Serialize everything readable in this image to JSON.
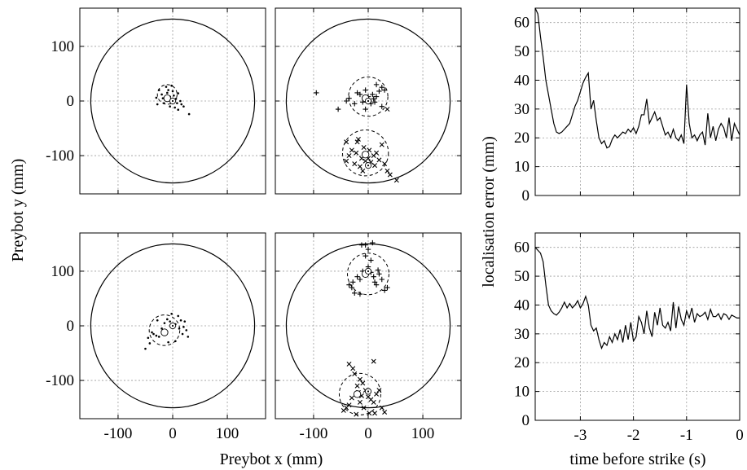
{
  "figure": {
    "shared_xlabel": "Preybot x (mm)",
    "shared_ylabel": "Preybot y (mm)",
    "right_ylabel": "localisation error (mm)",
    "right_xlabel": "time before strike (s)"
  },
  "chart_data": [
    {
      "id": "scatter-top-left",
      "type": "scatter",
      "xlim": [
        -170,
        170
      ],
      "ylim": [
        -170,
        170
      ],
      "xticks": [
        -100,
        0,
        100
      ],
      "yticks": [
        -100,
        0,
        100
      ],
      "xticklabels": [
        "",
        "",
        ""
      ],
      "yticklabels": [
        "-100",
        "0",
        "100"
      ],
      "grid": true,
      "arena_radius": 150,
      "clusters": [
        {
          "marker": "dot",
          "center": [
            -10,
            12
          ],
          "radius": 18,
          "estimate": [
            -10,
            5
          ],
          "true": [
            0,
            0
          ],
          "points": [
            [
              -25,
              20
            ],
            [
              -20,
              12
            ],
            [
              -18,
              5
            ],
            [
              -14,
              2
            ],
            [
              -10,
              15
            ],
            [
              -5,
              8
            ],
            [
              -8,
              20
            ],
            [
              0,
              18
            ],
            [
              2,
              10
            ],
            [
              6,
              4
            ],
            [
              10,
              14
            ],
            [
              14,
              0
            ],
            [
              16,
              -6
            ],
            [
              20,
              -10
            ],
            [
              -28,
              -6
            ],
            [
              -16,
              -4
            ],
            [
              -5,
              -10
            ],
            [
              4,
              -12
            ],
            [
              10,
              -16
            ],
            [
              30,
              -24
            ],
            [
              -30,
              6
            ],
            [
              -2,
              28
            ],
            [
              8,
              -4
            ],
            [
              -12,
              26
            ]
          ]
        }
      ]
    },
    {
      "id": "scatter-top-right",
      "type": "scatter",
      "xlim": [
        -170,
        170
      ],
      "ylim": [
        -170,
        170
      ],
      "xticks": [
        -100,
        0,
        100
      ],
      "yticks": [
        -100,
        0,
        100
      ],
      "xticklabels": [
        "",
        "",
        ""
      ],
      "yticklabels": [
        "",
        "",
        ""
      ],
      "grid": true,
      "arena_radius": 150,
      "clusters": [
        {
          "marker": "plus",
          "center": [
            0,
            8
          ],
          "radius": 36,
          "estimate": [
            -5,
            5
          ],
          "true": [
            0,
            0
          ],
          "points": [
            [
              -95,
              15
            ],
            [
              -55,
              -15
            ],
            [
              -40,
              0
            ],
            [
              -35,
              5
            ],
            [
              -20,
              15
            ],
            [
              -15,
              12
            ],
            [
              -10,
              -2
            ],
            [
              -5,
              20
            ],
            [
              0,
              8
            ],
            [
              2,
              0
            ],
            [
              5,
              -5
            ],
            [
              8,
              12
            ],
            [
              10,
              4
            ],
            [
              12,
              -2
            ],
            [
              15,
              8
            ],
            [
              20,
              18
            ],
            [
              25,
              25
            ],
            [
              30,
              20
            ],
            [
              25,
              -10
            ],
            [
              -25,
              -5
            ],
            [
              15,
              30
            ],
            [
              -5,
              -15
            ]
          ]
        },
        {
          "marker": "cross",
          "center": [
            -5,
            -95
          ],
          "radius": 42,
          "estimate": [
            -5,
            -98
          ],
          "true": [
            0,
            -118
          ],
          "points": [
            [
              -40,
              -110
            ],
            [
              -35,
              -100
            ],
            [
              -30,
              -90
            ],
            [
              -25,
              -115
            ],
            [
              -20,
              -75
            ],
            [
              -18,
              -70
            ],
            [
              -15,
              -120
            ],
            [
              -12,
              -105
            ],
            [
              -8,
              -85
            ],
            [
              -5,
              -110
            ],
            [
              0,
              -105
            ],
            [
              5,
              -112
            ],
            [
              10,
              -100
            ],
            [
              15,
              -95
            ],
            [
              20,
              -108
            ],
            [
              25,
              -80
            ],
            [
              30,
              -115
            ],
            [
              35,
              -128
            ],
            [
              40,
              -135
            ],
            [
              -40,
              -75
            ],
            [
              52,
              -145
            ],
            [
              -10,
              -128
            ],
            [
              2,
              -90
            ],
            [
              -22,
              -95
            ],
            [
              12,
              -118
            ],
            [
              35,
              -15
            ]
          ]
        }
      ]
    },
    {
      "id": "scatter-bottom-left",
      "type": "scatter",
      "xlim": [
        -170,
        170
      ],
      "ylim": [
        -170,
        170
      ],
      "xticks": [
        -100,
        0,
        100
      ],
      "yticks": [
        -100,
        0,
        100
      ],
      "xticklabels": [
        "-100",
        "0",
        "100"
      ],
      "yticklabels": [
        "-100",
        "0",
        "100"
      ],
      "grid": true,
      "arena_radius": 150,
      "clusters": [
        {
          "marker": "dot",
          "center": [
            -15,
            -8
          ],
          "radius": 28,
          "estimate": [
            -15,
            -12
          ],
          "true": [
            0,
            0
          ],
          "points": [
            [
              -50,
              -42
            ],
            [
              -42,
              -32
            ],
            [
              -38,
              -12
            ],
            [
              -35,
              -15
            ],
            [
              -30,
              -18
            ],
            [
              -25,
              -20
            ],
            [
              -20,
              -5
            ],
            [
              -15,
              5
            ],
            [
              -10,
              12
            ],
            [
              -5,
              8
            ],
            [
              0,
              -2
            ],
            [
              5,
              3
            ],
            [
              10,
              18
            ],
            [
              15,
              10
            ],
            [
              20,
              -2
            ],
            [
              25,
              -8
            ],
            [
              28,
              -20
            ],
            [
              -45,
              -22
            ],
            [
              -8,
              -30
            ],
            [
              5,
              -28
            ],
            [
              18,
              -15
            ],
            [
              -28,
              10
            ],
            [
              12,
              -5
            ],
            [
              -2,
              22
            ],
            [
              22,
              8
            ]
          ]
        }
      ]
    },
    {
      "id": "scatter-bottom-right",
      "type": "scatter",
      "xlim": [
        -170,
        170
      ],
      "ylim": [
        -170,
        170
      ],
      "xticks": [
        -100,
        0,
        100
      ],
      "yticks": [
        -100,
        0,
        100
      ],
      "xticklabels": [
        "-100",
        "0",
        "100"
      ],
      "yticklabels": [
        "",
        "",
        ""
      ],
      "grid": true,
      "arena_radius": 150,
      "clusters": [
        {
          "marker": "plus",
          "center": [
            0,
            95
          ],
          "radius": 38,
          "estimate": [
            -5,
            95
          ],
          "true": [
            0,
            100
          ],
          "points": [
            [
              -35,
              75
            ],
            [
              -30,
              70
            ],
            [
              -25,
              60
            ],
            [
              -15,
              85
            ],
            [
              -12,
              148
            ],
            [
              -5,
              148
            ],
            [
              0,
              140
            ],
            [
              5,
              120
            ],
            [
              8,
              152
            ],
            [
              10,
              90
            ],
            [
              12,
              80
            ],
            [
              15,
              75
            ],
            [
              20,
              95
            ],
            [
              25,
              85
            ],
            [
              30,
              65
            ],
            [
              35,
              70
            ],
            [
              -10,
              100
            ],
            [
              0,
              108
            ],
            [
              5,
              98
            ],
            [
              -20,
              90
            ],
            [
              -28,
              80
            ],
            [
              -15,
              58
            ],
            [
              18,
              102
            ],
            [
              -5,
              128
            ]
          ]
        },
        {
          "marker": "cross",
          "center": [
            -15,
            -125
          ],
          "radius": 38,
          "estimate": [
            -20,
            -125
          ],
          "true": [
            0,
            -120
          ],
          "points": [
            [
              -45,
              -155
            ],
            [
              -40,
              -150
            ],
            [
              -35,
              -145
            ],
            [
              -30,
              -132
            ],
            [
              -28,
              -78
            ],
            [
              -25,
              -88
            ],
            [
              -20,
              -110
            ],
            [
              -18,
              -122
            ],
            [
              -15,
              -140
            ],
            [
              -12,
              -128
            ],
            [
              -8,
              -150
            ],
            [
              -5,
              -118
            ],
            [
              0,
              -130
            ],
            [
              5,
              -135
            ],
            [
              10,
              -140
            ],
            [
              15,
              -125
            ],
            [
              20,
              -118
            ],
            [
              25,
              -150
            ],
            [
              30,
              -158
            ],
            [
              10,
              -65
            ],
            [
              -10,
              -105
            ],
            [
              -35,
              -70
            ],
            [
              -22,
              -162
            ],
            [
              2,
              -160
            ],
            [
              -15,
              -98
            ],
            [
              12,
              -160
            ]
          ]
        }
      ]
    },
    {
      "id": "error-top",
      "type": "line",
      "xlim": [
        -3.85,
        0
      ],
      "ylim": [
        0,
        65
      ],
      "xticks": [
        -3,
        -2,
        -1,
        0
      ],
      "yticks": [
        0,
        10,
        20,
        30,
        40,
        50,
        60
      ],
      "xticklabels": [
        "",
        "",
        "",
        ""
      ],
      "yticklabels": [
        "0",
        "10",
        "20",
        "30",
        "40",
        "50",
        "60"
      ],
      "grid": true,
      "x": [
        -3.85,
        -3.8,
        -3.75,
        -3.7,
        -3.65,
        -3.6,
        -3.55,
        -3.5,
        -3.45,
        -3.4,
        -3.35,
        -3.3,
        -3.25,
        -3.2,
        -3.15,
        -3.1,
        -3.05,
        -3.0,
        -2.95,
        -2.9,
        -2.85,
        -2.8,
        -2.75,
        -2.7,
        -2.65,
        -2.6,
        -2.55,
        -2.5,
        -2.45,
        -2.4,
        -2.35,
        -2.3,
        -2.25,
        -2.2,
        -2.15,
        -2.1,
        -2.05,
        -2.0,
        -1.95,
        -1.9,
        -1.85,
        -1.8,
        -1.75,
        -1.7,
        -1.65,
        -1.6,
        -1.55,
        -1.5,
        -1.45,
        -1.4,
        -1.35,
        -1.3,
        -1.25,
        -1.2,
        -1.15,
        -1.1,
        -1.05,
        -1.0,
        -0.95,
        -0.9,
        -0.85,
        -0.8,
        -0.75,
        -0.7,
        -0.65,
        -0.6,
        -0.55,
        -0.5,
        -0.45,
        -0.4,
        -0.35,
        -0.3,
        -0.25,
        -0.2,
        -0.15,
        -0.1,
        -0.05,
        0
      ],
      "y": [
        65,
        63,
        55,
        48,
        40,
        35,
        30,
        25,
        22,
        21.5,
        22,
        23,
        24,
        25,
        28,
        31,
        33,
        36,
        39,
        41,
        42.5,
        30,
        33,
        26,
        20,
        18,
        19,
        16.5,
        17,
        19.5,
        21,
        20,
        21,
        22,
        21.5,
        23,
        22,
        23.5,
        21.5,
        24,
        28,
        28,
        33.5,
        25,
        27,
        29,
        26,
        27,
        24,
        21,
        22,
        20,
        23,
        20,
        19,
        21,
        18,
        38.5,
        25,
        20,
        21,
        19,
        21,
        22,
        17.5,
        28.5,
        20,
        24,
        19,
        23,
        25,
        23.5,
        20,
        27,
        19,
        25,
        23,
        21
      ]
    },
    {
      "id": "error-bottom",
      "type": "line",
      "xlim": [
        -3.85,
        0
      ],
      "ylim": [
        0,
        65
      ],
      "xticks": [
        -3,
        -2,
        -1,
        0
      ],
      "yticks": [
        0,
        10,
        20,
        30,
        40,
        50,
        60
      ],
      "xticklabels": [
        "-3",
        "-2",
        "-1",
        "0"
      ],
      "yticklabels": [
        "0",
        "10",
        "20",
        "30",
        "40",
        "50",
        "60"
      ],
      "grid": true,
      "x": [
        -3.85,
        -3.8,
        -3.75,
        -3.7,
        -3.65,
        -3.6,
        -3.55,
        -3.5,
        -3.45,
        -3.4,
        -3.35,
        -3.3,
        -3.25,
        -3.2,
        -3.15,
        -3.1,
        -3.05,
        -3.0,
        -2.95,
        -2.9,
        -2.85,
        -2.8,
        -2.75,
        -2.7,
        -2.65,
        -2.6,
        -2.55,
        -2.5,
        -2.45,
        -2.4,
        -2.35,
        -2.3,
        -2.25,
        -2.2,
        -2.15,
        -2.1,
        -2.05,
        -2.0,
        -1.95,
        -1.9,
        -1.85,
        -1.8,
        -1.75,
        -1.7,
        -1.65,
        -1.6,
        -1.55,
        -1.5,
        -1.45,
        -1.4,
        -1.35,
        -1.3,
        -1.25,
        -1.2,
        -1.15,
        -1.1,
        -1.05,
        -1.0,
        -0.95,
        -0.9,
        -0.85,
        -0.8,
        -0.75,
        -0.7,
        -0.65,
        -0.6,
        -0.55,
        -0.5,
        -0.45,
        -0.4,
        -0.35,
        -0.3,
        -0.25,
        -0.2,
        -0.15,
        -0.1,
        -0.05,
        0
      ],
      "y": [
        60,
        59,
        58,
        55,
        47,
        40,
        38,
        37,
        36.5,
        37.5,
        39,
        41,
        39,
        40.5,
        39,
        40,
        41.5,
        39,
        40.5,
        43,
        40,
        33,
        31,
        32,
        28,
        25,
        27,
        26,
        29,
        27,
        30,
        28,
        31.5,
        27,
        33,
        28,
        34,
        27.5,
        29,
        36,
        34,
        30,
        38,
        32,
        29,
        37.5,
        33,
        39,
        33,
        32,
        34,
        31,
        41,
        32,
        39.5,
        35,
        33,
        38,
        35.5,
        39,
        34,
        37,
        36,
        36.5,
        37.5,
        35,
        38.5,
        36,
        36,
        37,
        35,
        37,
        36.5,
        35,
        36.5,
        36,
        35.5,
        35.5
      ]
    }
  ]
}
